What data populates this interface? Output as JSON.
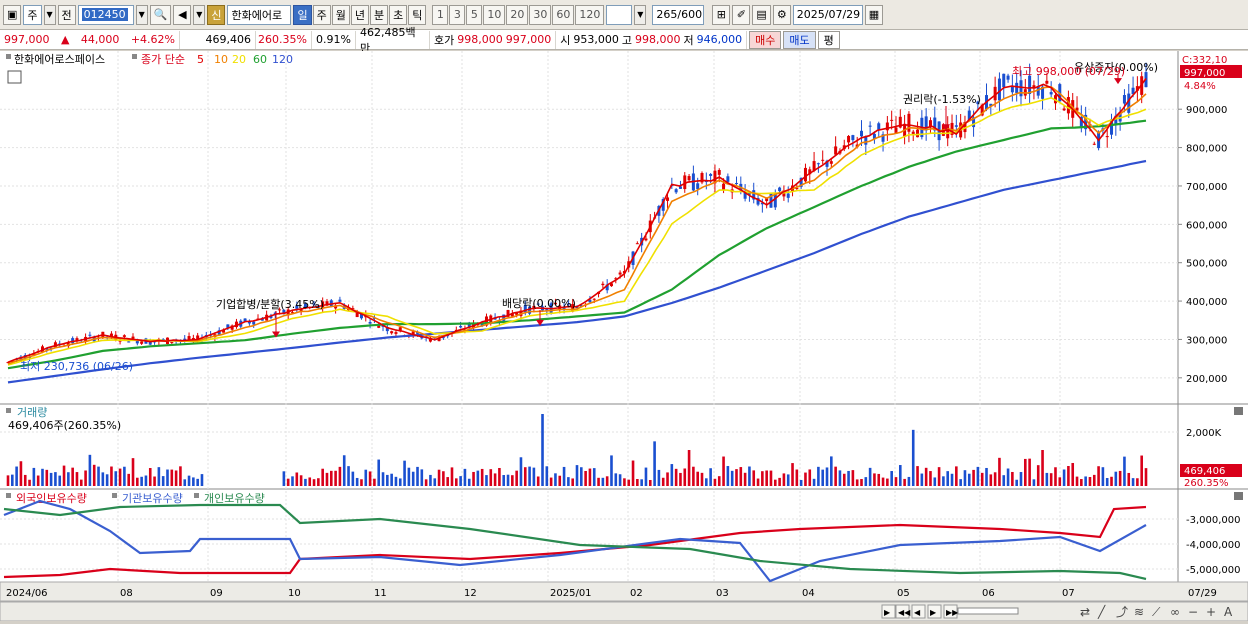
{
  "toolbar": {
    "period_type": "주",
    "prev_label": "전",
    "stock_code": "012450",
    "new_label": "신",
    "stock_name": "한화에어로",
    "periods": [
      "일",
      "주",
      "월",
      "년",
      "분",
      "초",
      "틱"
    ],
    "active_period": "일",
    "intervals": [
      "1",
      "3",
      "5",
      "10",
      "20",
      "30",
      "60",
      "120"
    ],
    "count_current": "265",
    "count_total": "600",
    "date": "2025/07/29"
  },
  "infobar": {
    "price": "997,000",
    "arrow": "▲",
    "change": "44,000",
    "change_pct": "+4.62%",
    "volume": "469,406",
    "volume_ratio": "260.35%",
    "turnover_pct": "0.91%",
    "amount": "462,485백만",
    "bid_label": "호가",
    "ask_price": "998,000",
    "bid_price": "997,000",
    "open_label": "시",
    "open": "953,000",
    "high_label": "고",
    "high": "998,000",
    "low_label": "저",
    "low": "946,000",
    "buy_label": "매수",
    "sell_label": "매도",
    "eval_label": "평"
  },
  "price_panel": {
    "name": "한화에어로스페이스",
    "indicator": "종가 단순",
    "ma_periods": [
      "5",
      "10",
      "20",
      "60",
      "120"
    ],
    "ma_colors": [
      "#e00000",
      "#f08000",
      "#f0e000",
      "#20a030",
      "#3050d0"
    ],
    "current_price_tag": "997,000",
    "current_pct_tag": "4.84%",
    "top_truncated_label": "C:332,10",
    "y_ticks": [
      "900,000",
      "800,000",
      "700,000",
      "600,000",
      "500,000",
      "400,000",
      "300,000",
      "200,000"
    ],
    "annotations": {
      "merger": "기업합병/분할(3.45%)",
      "dividend": "배당락(0.00%)",
      "rights": "권리락(-1.53%)",
      "high": "최고 998,000 (07/29)",
      "capital": "유상증자(0.00%)",
      "low": "최저 230,736 (06/26)"
    }
  },
  "volume_panel": {
    "title": "거래량",
    "value_line": "469,406주(260.35%)",
    "y_tick": "2,000K",
    "current_tag": "469,406",
    "current_pct_tag": "260.35%"
  },
  "holdings_panel": {
    "series": [
      "외국인보유수량",
      "기관보유수량",
      "개인보유수량"
    ],
    "series_colors": [
      "#d9001a",
      "#3a5fd0",
      "#2a8a50"
    ],
    "y_ticks": [
      "-3,000,000",
      "-4,000,000",
      "-5,000,000"
    ]
  },
  "x_axis": {
    "labels": [
      "2024/06",
      "08",
      "09",
      "10",
      "11",
      "12",
      "2025/01",
      "02",
      "03",
      "04",
      "05",
      "06",
      "07"
    ],
    "right_label": "07/29"
  },
  "chart_data": {
    "type": "line",
    "title": "",
    "ylim": [
      150000,
      1010000
    ],
    "ma_series": [
      {
        "name": "5",
        "values": [
          240000,
          285000,
          310000,
          295000,
          300000,
          345000,
          375000,
          395000,
          330000,
          300000,
          345000,
          380000,
          385000,
          470000,
          700000,
          720000,
          650000,
          740000,
          830000,
          860000,
          840000,
          960000,
          960000,
          820000,
          980000
        ]
      },
      {
        "name": "10",
        "values": [
          236000,
          278000,
          305000,
          296000,
          296000,
          330000,
          368000,
          388000,
          345000,
          305000,
          335000,
          373000,
          380000,
          430000,
          660000,
          715000,
          670000,
          715000,
          810000,
          850000,
          845000,
          930000,
          960000,
          840000,
          940000
        ]
      },
      {
        "name": "20",
        "values": [
          233000,
          268000,
          298000,
          298000,
          295000,
          315000,
          355000,
          378000,
          360000,
          315000,
          322000,
          362000,
          375000,
          400000,
          600000,
          690000,
          680000,
          690000,
          780000,
          835000,
          840000,
          900000,
          930000,
          860000,
          900000
        ]
      },
      {
        "name": "60",
        "values": [
          225000,
          245000,
          270000,
          282000,
          290000,
          298000,
          315000,
          330000,
          340000,
          340000,
          342000,
          350000,
          360000,
          370000,
          430000,
          520000,
          590000,
          645000,
          700000,
          750000,
          790000,
          820000,
          850000,
          855000,
          870000
        ]
      },
      {
        "name": "120",
        "values": [
          188000,
          205000,
          222000,
          238000,
          252000,
          265000,
          278000,
          292000,
          305000,
          315000,
          325000,
          335000,
          345000,
          360000,
          395000,
          435000,
          480000,
          525000,
          575000,
          620000,
          655000,
          690000,
          715000,
          740000,
          765000
        ]
      }
    ]
  }
}
